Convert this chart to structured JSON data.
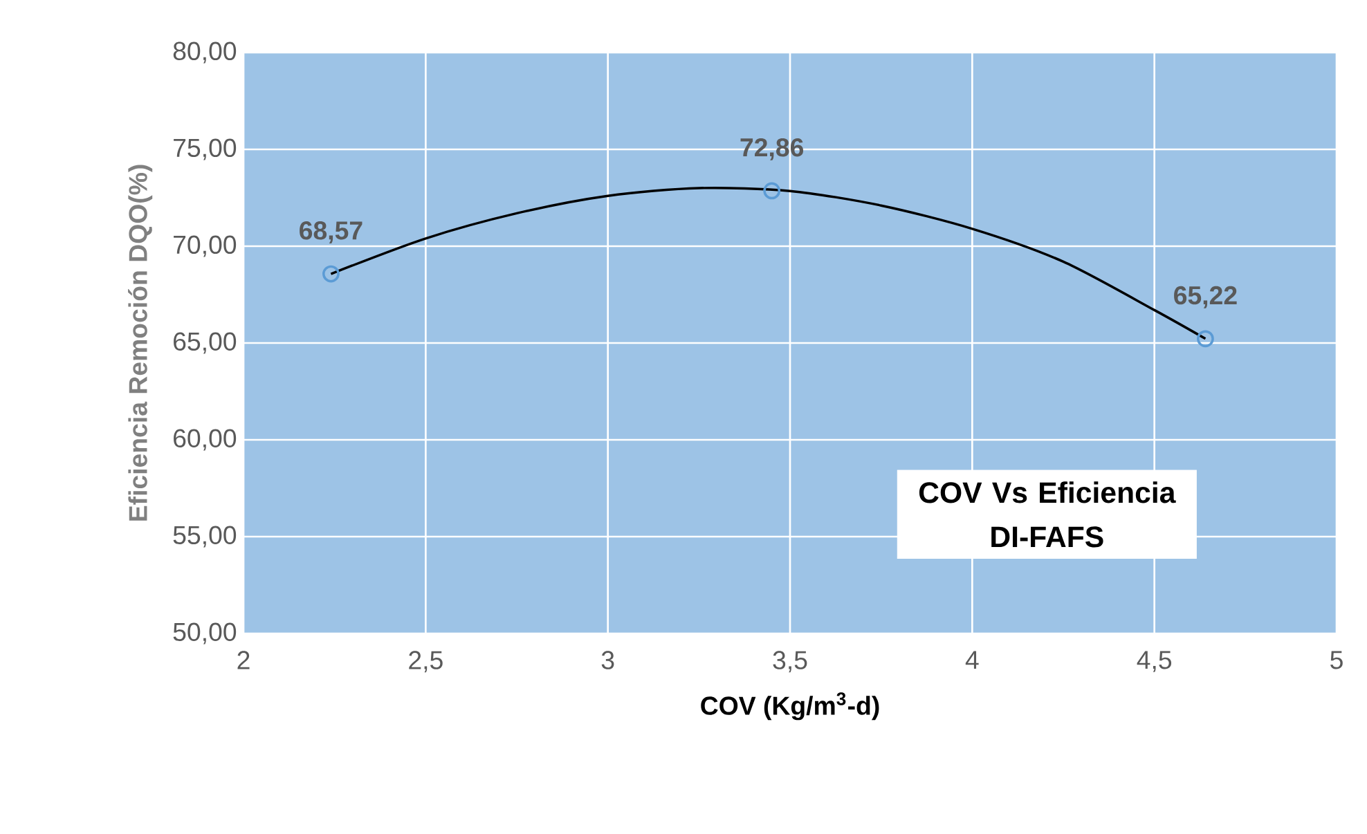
{
  "chart_data": {
    "type": "scatter",
    "title": "COV Vs Eficiencia DI-FAFS",
    "xlabel": "COV (Kg/m$^{3}$-d)",
    "ylabel": "Eficiencia Remoción DQO(%)",
    "xlim": [
      2,
      5
    ],
    "ylim": [
      50,
      80
    ],
    "xticks": [
      2,
      {
        "value": 2.5,
        "label": "2,5"
      },
      3,
      {
        "value": 3.5,
        "label": "3,5"
      },
      4,
      {
        "value": 4.5,
        "label": "4,5"
      },
      5
    ],
    "yticks": [
      {
        "value": 50,
        "label": "50,00"
      },
      {
        "value": 55,
        "label": "55,00"
      },
      {
        "value": 60,
        "label": "60,00"
      },
      {
        "value": 65,
        "label": "65,00"
      },
      {
        "value": 70,
        "label": "70,00"
      },
      {
        "value": 75,
        "label": "75,00"
      },
      {
        "value": 80,
        "label": "80,00"
      }
    ],
    "grid": true,
    "series": [
      {
        "color": "#5b9bd5",
        "marker": "circle",
        "x": [
          2.24,
          3.45,
          4.64
        ],
        "values": [
          68.57,
          72.86,
          65.22
        ],
        "value_labels": [
          "68,57",
          "72,86",
          "65,22"
        ]
      },
      {
        "type": "line",
        "color": "#000000",
        "marker": "none",
        "line_style": "solid",
        "x": [
          2.24,
          2.5,
          2.75,
          3.0,
          3.25,
          3.5,
          3.75,
          4.0,
          4.25,
          4.5,
          4.64
        ],
        "values": [
          68.57,
          70.4,
          71.7,
          72.6,
          73.0,
          72.85,
          72.1,
          70.9,
          69.2,
          66.7,
          65.22
        ]
      }
    ]
  }
}
